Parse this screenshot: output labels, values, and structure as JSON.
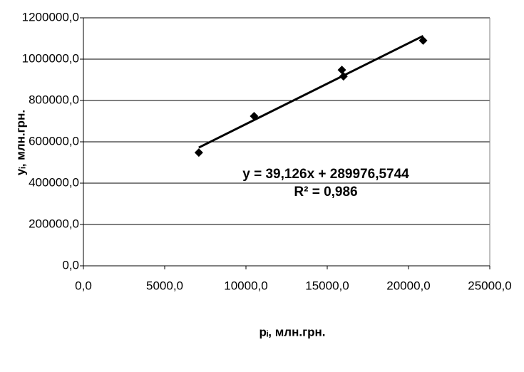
{
  "chart_data": {
    "type": "scatter",
    "x_label": "pᵢ, млн.грн.",
    "y_label": "yᵢ, млн.грн.",
    "annotations": [
      "y = 39,126x + 289976,5744",
      "R² = 0,986"
    ],
    "series": [
      {
        "color": "#000000",
        "x": [
          7100,
          10500,
          15900,
          16000,
          20900
        ],
        "values": [
          548000,
          724000,
          948000,
          917000,
          1090000
        ]
      }
    ],
    "trendline": true,
    "grid": true,
    "xlim": [
      0,
      25000
    ],
    "xticks": [
      {
        "value": 0,
        "label": "0,0"
      },
      {
        "value": 5000,
        "label": "5000,0"
      },
      {
        "value": 10000,
        "label": "10000,0"
      },
      {
        "value": 15000,
        "label": "15000,0"
      },
      {
        "value": 20000,
        "label": "20000,0"
      },
      {
        "value": 25000,
        "label": "25000,0"
      }
    ],
    "ylim": [
      0,
      1200000
    ],
    "yticks": [
      {
        "value": 0,
        "label": "0,0"
      },
      {
        "value": 200000,
        "label": "200000,0"
      },
      {
        "value": 400000,
        "label": "400000,0"
      },
      {
        "value": 600000,
        "label": "600000,0"
      },
      {
        "value": 800000,
        "label": "800000,0"
      },
      {
        "value": 1000000,
        "label": "1000000,0"
      },
      {
        "value": 1200000,
        "label": "1200000,0"
      }
    ]
  }
}
